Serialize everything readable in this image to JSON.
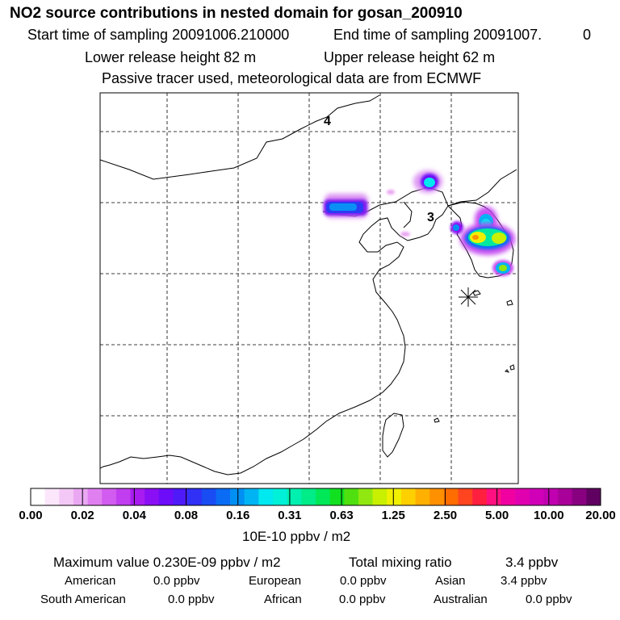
{
  "header": {
    "title": "NO2 source contributions in nested domain for gosan_200910",
    "start_sampling": "Start time of sampling 20091006.210000",
    "end_sampling": "End time of sampling 20091007.",
    "end_suffix": "0",
    "lower_release": "Lower release height   82 m",
    "upper_release": "Upper release height   62 m",
    "tracer_note": "Passive tracer used, meteorological data are from ECMWF"
  },
  "chart_data": {
    "type": "heatmap",
    "title": "NO2 source contributions in nested domain for gosan_200910",
    "unit_label": "10E-10 ppbv / m2",
    "legend_ticks": [
      "0.00",
      "0.02",
      "0.04",
      "0.08",
      "0.16",
      "0.31",
      "0.63",
      "1.25",
      "2.50",
      "5.00",
      "10.00",
      "20.00"
    ],
    "legend_colors": [
      "#ffffff",
      "#fbe6fb",
      "#f4c8f6",
      "#eaa8f2",
      "#e080f0",
      "#d25cef",
      "#c13ef0",
      "#a81cf0",
      "#8a0ff5",
      "#6c0cf8",
      "#4e1af8",
      "#3030f6",
      "#1a4cf4",
      "#0a6cf4",
      "#0090f4",
      "#00b4f4",
      "#00e8f0",
      "#00f0d8",
      "#00f0b0",
      "#00ec88",
      "#00e858",
      "#10e020",
      "#50e010",
      "#90e810",
      "#c8f000",
      "#f0f000",
      "#ffd000",
      "#ffb000",
      "#ff9000",
      "#ff6c00",
      "#ff4420",
      "#ff2040",
      "#ff1080",
      "#f000a0",
      "#e000b0",
      "#d000b8",
      "#c000b0",
      "#a80098",
      "#880080",
      "#600060"
    ],
    "grid_labels": [
      "4",
      "3"
    ],
    "receptor": "gosan",
    "maximum": "0.230E-09",
    "total_mixing_ratio": 3.4
  },
  "footer": {
    "maximum_label": "Maximum value  0.230E-09 ppbv / m2",
    "total_label": "Total mixing ratio",
    "total_value": "3.4 ppbv",
    "regions": [
      {
        "name": "American",
        "value": "0.0 ppbv"
      },
      {
        "name": "European",
        "value": "0.0 ppbv"
      },
      {
        "name": "Asian",
        "value": "3.4 ppbv"
      },
      {
        "name": "South American",
        "value": "0.0 ppbv"
      },
      {
        "name": "African",
        "value": "0.0 ppbv"
      },
      {
        "name": "Australian",
        "value": "0.0 ppbv"
      }
    ]
  }
}
